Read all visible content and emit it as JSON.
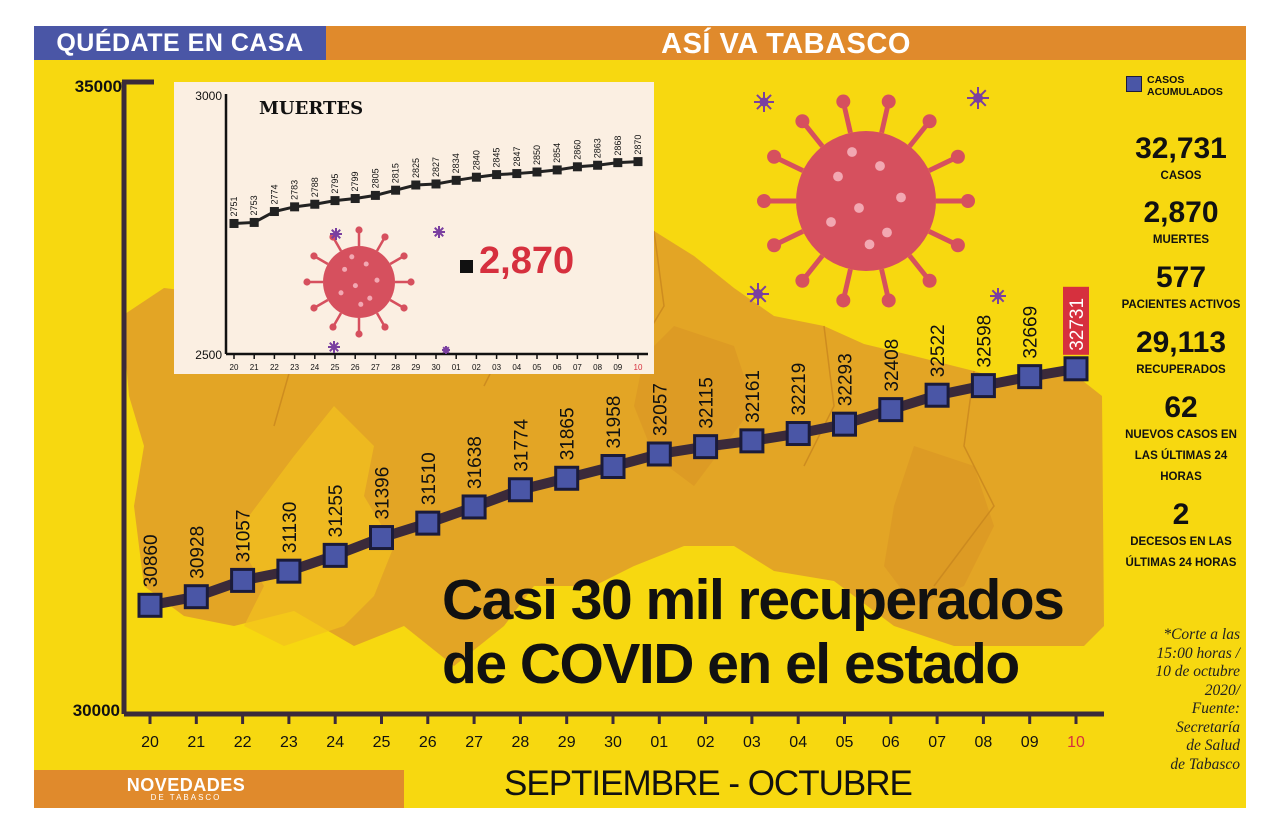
{
  "header": {
    "left_tag": "QUÉDATE EN CASA",
    "title": "ASÍ VA TABASCO"
  },
  "headline": [
    "Casi 30 mil recuperados",
    "de COVID en el estado"
  ],
  "colors": {
    "background": "#f7d810",
    "header_blue": "#4a56a6",
    "header_orange": "#e08a2c",
    "map_orange": "#e0a028",
    "line": "#3b2a3a",
    "marker": "#4a56a6",
    "highlight": "#d6303e",
    "virus": "#d6505e",
    "virus_spikes": "#7a3fa0"
  },
  "icons": [
    "virus-icon",
    "map-graphic"
  ],
  "legend": {
    "label_line1": "CASOS",
    "label_line2": "ACUMULADOS"
  },
  "stats": [
    {
      "value": "32,731",
      "label": [
        "CASOS"
      ]
    },
    {
      "value": "2,870",
      "label": [
        "MUERTES"
      ]
    },
    {
      "value": "577",
      "label": [
        "PACIENTES ACTIVOS"
      ]
    },
    {
      "value": "29,113",
      "label": [
        "RECUPERADOS"
      ]
    },
    {
      "value": "62",
      "label": [
        "NUEVOS CASOS EN",
        "LAS ÚLTIMAS 24",
        "HORAS"
      ]
    },
    {
      "value": "2",
      "label": [
        "DECESOS EN LAS",
        "ÚLTIMAS 24 HORAS"
      ]
    }
  ],
  "footnote": [
    "*Corte a las",
    "15:00 horas /",
    "10 de octubre",
    "2020/",
    "Fuente:",
    "Secretaría",
    "de Salud",
    "de Tabasco"
  ],
  "brand": {
    "name": "NOVEDADES",
    "subtitle": "DE TABASCO"
  },
  "chart_data": [
    {
      "type": "line",
      "title": "",
      "xlabel": "SEPTIEMBRE - OCTUBRE",
      "ylabel": "",
      "ylim": [
        30000,
        35000
      ],
      "y_ticks": [
        "35000",
        "30000"
      ],
      "categories": [
        "20",
        "21",
        "22",
        "23",
        "24",
        "25",
        "26",
        "27",
        "28",
        "29",
        "30",
        "01",
        "02",
        "03",
        "04",
        "05",
        "06",
        "07",
        "08",
        "09",
        "10"
      ],
      "highlight_category": "10",
      "series": [
        {
          "name": "CASOS ACUMULADOS",
          "values": [
            30860,
            30928,
            31057,
            31130,
            31255,
            31396,
            31510,
            31638,
            31774,
            31865,
            31958,
            32057,
            32115,
            32161,
            32219,
            32293,
            32408,
            32522,
            32598,
            32669,
            32731
          ]
        }
      ],
      "legend": "right",
      "grid": false
    },
    {
      "type": "line",
      "title": "MUERTES",
      "xlabel": "",
      "ylabel": "",
      "ylim": [
        2500,
        3000
      ],
      "y_ticks": [
        "3000",
        "2500"
      ],
      "categories": [
        "20",
        "21",
        "22",
        "23",
        "24",
        "25",
        "26",
        "27",
        "28",
        "29",
        "30",
        "01",
        "02",
        "03",
        "04",
        "05",
        "06",
        "07",
        "08",
        "09",
        "10"
      ],
      "highlight_category": "10",
      "total_label": "2,870",
      "series": [
        {
          "name": "",
          "values": [
            2751,
            2753,
            2774,
            2783,
            2788,
            2795,
            2799,
            2805,
            2815,
            2825,
            2827,
            2834,
            2840,
            2845,
            2847,
            2850,
            2854,
            2860,
            2863,
            2868,
            2870
          ]
        }
      ],
      "grid": false
    }
  ]
}
